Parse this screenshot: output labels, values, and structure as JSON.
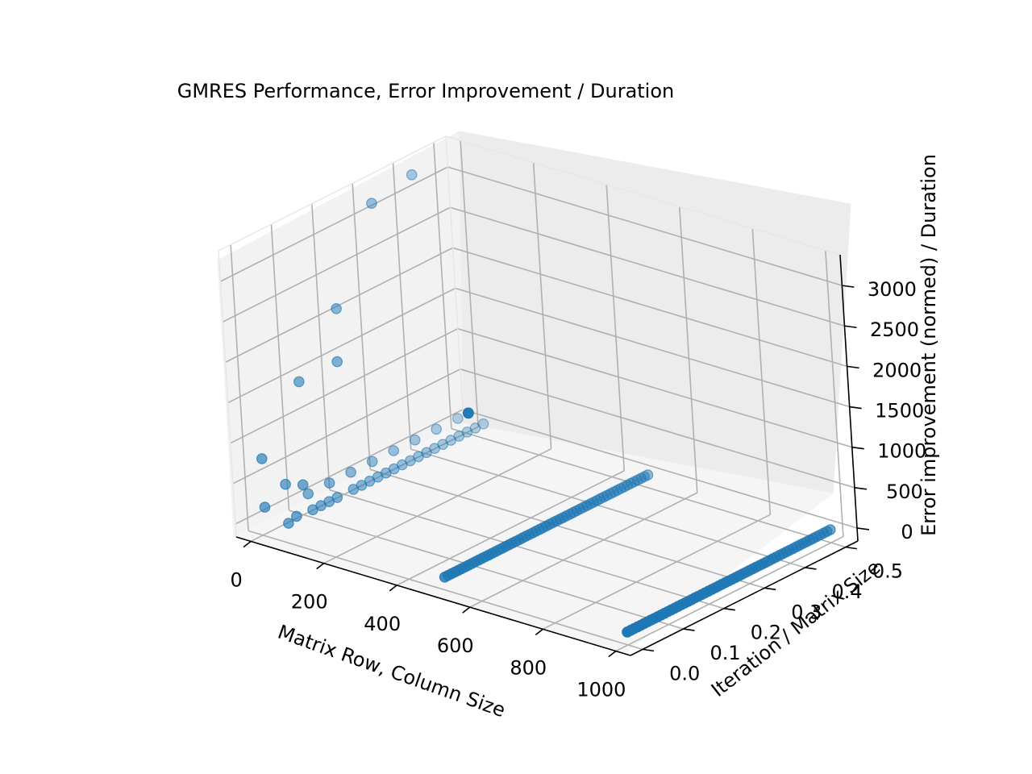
{
  "chart_data": {
    "type": "scatter",
    "projection": "3d",
    "title": "GMRES Performance, Error Improvement / Duration",
    "xlabel": "Matrix Row, Column Size",
    "ylabel": "Iteration / Matrix Size",
    "zlabel": "Error improvement (normed) / Duration",
    "xticks": [
      "0",
      "200",
      "400",
      "600",
      "800",
      "1000"
    ],
    "yticks": [
      "0.0",
      "0.1",
      "0.2",
      "0.3",
      "0.4",
      "0.5"
    ],
    "zticks": [
      "0",
      "500",
      "1000",
      "1500",
      "2000",
      "2500",
      "3000"
    ],
    "xlim": [
      -40,
      1040
    ],
    "ylim": [
      -0.03,
      0.53
    ],
    "zlim": [
      -160,
      3380
    ],
    "grid": true,
    "marker_color": "#1f77b4",
    "series": [
      {
        "x_values": [
          50,
          50,
          50,
          50,
          50,
          50,
          50,
          50,
          50,
          50,
          50,
          50,
          50,
          50,
          50,
          50,
          50,
          50,
          50,
          50,
          50,
          50,
          50,
          50,
          50
        ],
        "y_values": [
          0.02,
          0.04,
          0.06,
          0.08,
          0.1,
          0.12,
          0.14,
          0.16,
          0.18,
          0.2,
          0.22,
          0.24,
          0.26,
          0.28,
          0.3,
          0.32,
          0.34,
          0.36,
          0.38,
          0.4,
          0.42,
          0.44,
          0.46,
          0.48,
          0.5
        ],
        "z_values": [
          5,
          40,
          380,
          20,
          20,
          20,
          20,
          1650,
          20,
          20,
          20,
          20,
          20,
          20,
          20,
          20,
          20,
          20,
          20,
          20,
          20,
          20,
          20,
          20,
          20
        ]
      },
      {
        "x_values": [
          10,
          10,
          10,
          10,
          10,
          10,
          10,
          10,
          10,
          10,
          10,
          10,
          10,
          10,
          10,
          10,
          10,
          10,
          10
        ],
        "y_values": [
          0.0,
          0.0526,
          0.1053,
          0.1579,
          0.2105,
          0.2632,
          0.3158,
          0.3684,
          0.4211,
          0.4737,
          0.5,
          0.5,
          0.5,
          0.5,
          0.5,
          0.5,
          0.5,
          0.5,
          0.5
        ],
        "z_values": [
          200,
          350,
          100,
          100,
          100,
          100,
          100,
          100,
          100,
          100,
          100,
          100,
          100,
          100,
          100,
          100,
          100,
          100,
          100
        ]
      },
      {
        "x_values": [
          10,
          10,
          10,
          10,
          10
        ],
        "y_values": [
          0.0,
          0.1,
          0.2,
          0.3,
          0.4
        ],
        "z_values": [
          800,
          1500,
          2150,
          3200,
          3300
        ]
      },
      {
        "x_values": [
          500,
          500
        ],
        "y_values": [
          0.0,
          0.5
        ],
        "z_values": [
          0,
          0
        ]
      },
      {
        "x_values": [
          1000,
          1000
        ],
        "y_values": [
          0.0,
          0.5
        ],
        "z_values": [
          0,
          0
        ]
      }
    ]
  }
}
